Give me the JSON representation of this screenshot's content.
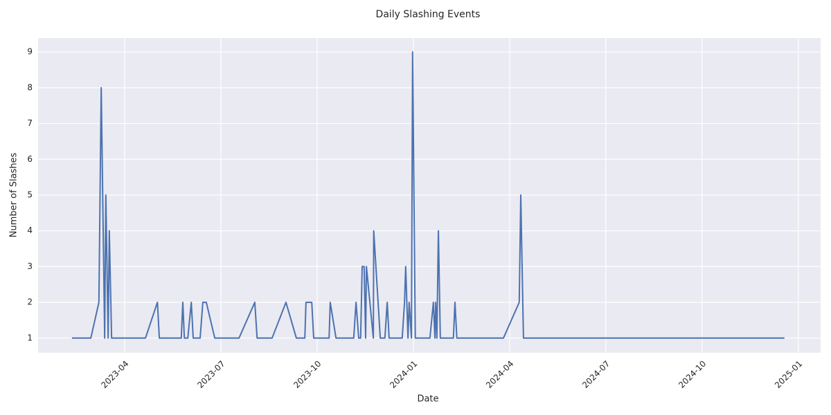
{
  "chart_data": {
    "type": "line",
    "title": "Daily Slashing Events",
    "xlabel": "Date",
    "ylabel": "Number of Slashes",
    "x": [
      2023.113,
      2023.162,
      2023.183,
      2023.189,
      2023.198,
      2023.201,
      2023.207,
      2023.21,
      2023.216,
      2023.304,
      2023.335,
      2023.34,
      2023.397,
      2023.401,
      2023.405,
      2023.414,
      2023.423,
      2023.428,
      2023.446,
      2023.453,
      2023.462,
      2023.484,
      2023.547,
      2023.588,
      2023.594,
      2023.633,
      2023.669,
      2023.696,
      2023.718,
      2023.721,
      2023.736,
      2023.741,
      2023.781,
      2023.784,
      2023.799,
      2023.845,
      2023.851,
      2023.858,
      2023.863,
      2023.867,
      2023.872,
      2023.876,
      2023.878,
      2023.896,
      2023.897,
      2023.914,
      2023.926,
      2023.932,
      2023.937,
      2023.971,
      2023.977,
      2023.98,
      2023.986,
      2023.989,
      2023.995,
      2023.998,
      2024.005,
      2024.043,
      2024.052,
      2024.056,
      2024.058,
      2024.061,
      2024.065,
      2024.07,
      2024.104,
      2024.108,
      2024.113,
      2024.234,
      2024.275,
      2024.279,
      2024.286,
      2024.964
    ],
    "series": [
      {
        "name": "Slashes",
        "color": "#4c72b0",
        "values": [
          1,
          1,
          2,
          8,
          1,
          5,
          1,
          4,
          1,
          1,
          2,
          1,
          1,
          2,
          1,
          1,
          2,
          1,
          1,
          2,
          2,
          1,
          1,
          2,
          1,
          1,
          2,
          1,
          1,
          2,
          2,
          1,
          1,
          2,
          1,
          1,
          2,
          1,
          1,
          3,
          3,
          1,
          3,
          1,
          4,
          1,
          1,
          2,
          1,
          1,
          2,
          3,
          1,
          2,
          1,
          9,
          1,
          1,
          2,
          1,
          2,
          1,
          4,
          1,
          1,
          2,
          1,
          1,
          2,
          5,
          1,
          1
        ]
      }
    ],
    "xlim": [
      2023.025,
      2025.058
    ],
    "xticks": [
      {
        "value": 2023.25,
        "label": "2023-04"
      },
      {
        "value": 2023.5,
        "label": "2023-07"
      },
      {
        "value": 2023.75,
        "label": "2023-10"
      },
      {
        "value": 2024.0,
        "label": "2024-01"
      },
      {
        "value": 2024.25,
        "label": "2024-04"
      },
      {
        "value": 2024.5,
        "label": "2024-07"
      },
      {
        "value": 2024.75,
        "label": "2024-10"
      },
      {
        "value": 2025.0,
        "label": "2025-01"
      }
    ],
    "ylim": [
      0.59,
      9.39
    ],
    "yticks": [
      1,
      2,
      3,
      4,
      5,
      6,
      7,
      8,
      9
    ],
    "grid": true
  }
}
